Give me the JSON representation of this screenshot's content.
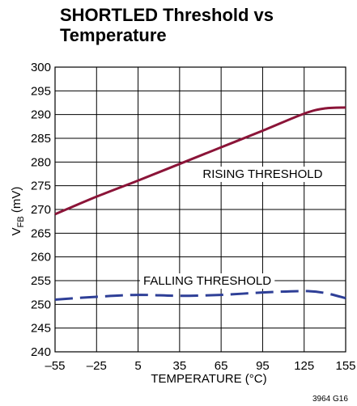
{
  "chart_data": {
    "type": "line",
    "title": "SHORTLED Threshold vs Temperature",
    "xlabel": "TEMPERATURE (°C)",
    "ylabel_main": "V",
    "ylabel_sub": "FB",
    "ylabel_unit": " (mV)",
    "xlim": [
      -55,
      155
    ],
    "ylim": [
      240,
      300
    ],
    "xticks": [
      -55,
      -25,
      5,
      35,
      65,
      95,
      125,
      155
    ],
    "xtick_labels": [
      "–55",
      "–25",
      "5",
      "35",
      "65",
      "95",
      "125",
      "155"
    ],
    "yticks": [
      240,
      245,
      250,
      255,
      260,
      265,
      270,
      275,
      280,
      285,
      290,
      295,
      300
    ],
    "grid": true,
    "series": [
      {
        "name": "RISING THRESHOLD",
        "color": "#8b1438",
        "style": "solid",
        "x": [
          -55,
          -25,
          5,
          35,
          65,
          95,
          125,
          140,
          155
        ],
        "y": [
          269,
          272.7,
          276.1,
          279.6,
          283.1,
          286.6,
          290.2,
          291.3,
          291.5
        ]
      },
      {
        "name": "FALLING THRESHOLD",
        "color": "#2e3f97",
        "style": "dashed",
        "x": [
          -55,
          -25,
          5,
          35,
          65,
          95,
          125,
          140,
          155
        ],
        "y": [
          251,
          251.6,
          252,
          251.8,
          252,
          252.5,
          252.8,
          252.4,
          251.3
        ]
      }
    ],
    "annotations": [
      {
        "text": "RISING THRESHOLD",
        "x": 95,
        "y": 277.5
      },
      {
        "text": "FALLING THRESHOLD",
        "x": 55,
        "y": 255
      }
    ],
    "figure_id": "3964 G16"
  }
}
